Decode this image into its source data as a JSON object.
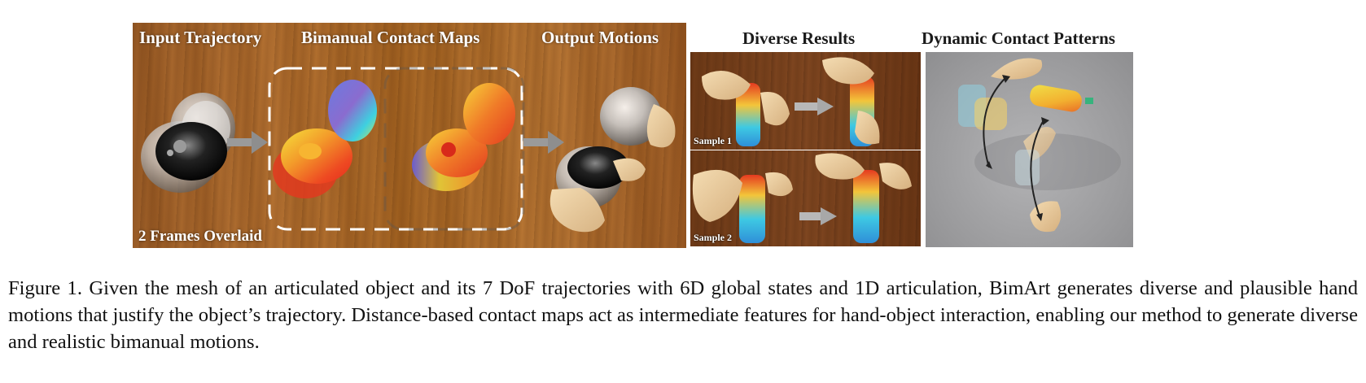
{
  "figure": {
    "panel_titles": {
      "input": "Input Trajectory",
      "contact_maps": "Bimanual Contact Maps",
      "output": "Output Motions",
      "diverse": "Diverse Results",
      "dynamic": "Dynamic Contact Patterns"
    },
    "overlay_note": "2 Frames Overlaid",
    "sample_labels": [
      "Sample 1",
      "Sample 2"
    ]
  },
  "caption": "Figure 1. Given the mesh of an articulated object and its 7 DoF trajectories with 6D global states and 1D articulation, BimArt generates diverse and plausible hand motions that justify the object’s trajectory. Distance-based contact maps act as intermediate features for hand-object interaction, enabling our method to generate diverse and realistic bimanual motions."
}
